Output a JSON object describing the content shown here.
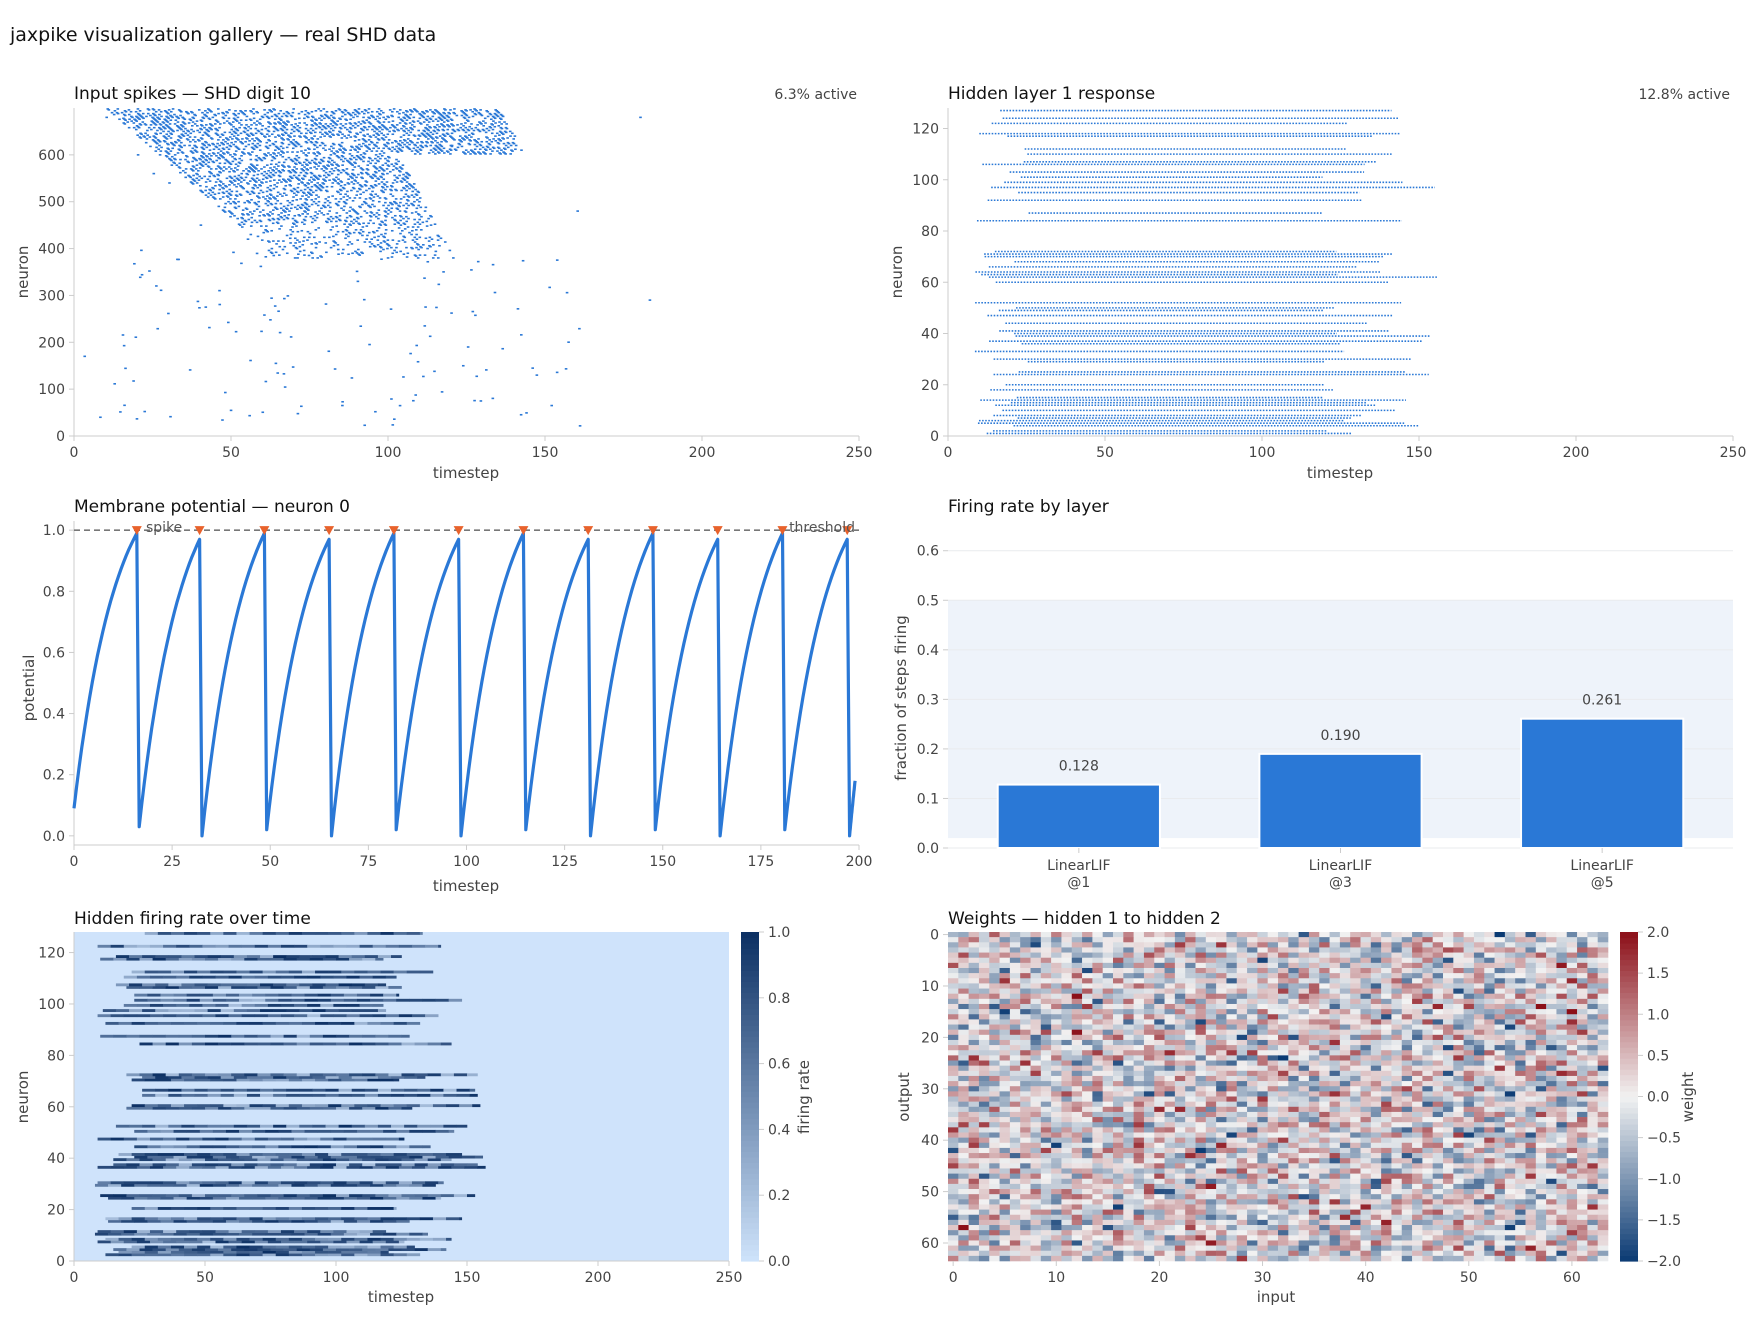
{
  "figure": {
    "title": "jaxpike visualization gallery — real SHD data"
  },
  "colors": {
    "primary": "#2a78d6",
    "spike_marker": "#e8622c",
    "threshold": "#777777",
    "band": "#eef3fa",
    "heat_low": "#cfe3fb",
    "heat_high": "#0b2f63",
    "div_neg": "#0a3a73",
    "div_mid": "#f2f2f2",
    "div_pos": "#8c0f18"
  },
  "chart_data": [
    {
      "id": "input_spikes",
      "type": "scatter",
      "title": "Input spikes — SHD digit 10",
      "note": "6.3% active",
      "xlabel": "timestep",
      "ylabel": "neuron",
      "xlim": [
        0,
        250
      ],
      "ylim": [
        0,
        700
      ],
      "xticks": [
        "0",
        "50",
        "100",
        "150",
        "200",
        "250"
      ],
      "yticks": [
        "0",
        "100",
        "200",
        "300",
        "400",
        "500",
        "600"
      ],
      "pattern": "dense raster of short horizontal spike dashes, concentrated in timesteps 10–145 for neurons 380–700 with sparse spikes below",
      "sample_spikes": [
        [
          10,
          680
        ],
        [
          20,
          600
        ],
        [
          25,
          560
        ],
        [
          30,
          540
        ],
        [
          40,
          450
        ],
        [
          55,
          420
        ],
        [
          70,
          380
        ],
        [
          90,
          330
        ],
        [
          120,
          620
        ],
        [
          140,
          640
        ],
        [
          160,
          480
        ],
        [
          180,
          680
        ],
        [
          183,
          290
        ],
        [
          3,
          170
        ],
        [
          8,
          40
        ]
      ]
    },
    {
      "id": "hidden1_response",
      "type": "scatter",
      "title": "Hidden layer 1 response",
      "note": "12.8% active",
      "xlabel": "timestep",
      "ylabel": "neuron",
      "xlim": [
        0,
        250
      ],
      "ylim": [
        0,
        128
      ],
      "xticks": [
        "0",
        "50",
        "100",
        "150",
        "200",
        "250"
      ],
      "yticks": [
        "0",
        "20",
        "40",
        "60",
        "80",
        "100",
        "120"
      ],
      "active_neurons": [
        1,
        2,
        4,
        5,
        6,
        7,
        8,
        10,
        12,
        13,
        14,
        15,
        18,
        20,
        24,
        25,
        29,
        30,
        33,
        36,
        37,
        39,
        40,
        41,
        44,
        47,
        49,
        50,
        52,
        60,
        62,
        63,
        64,
        66,
        68,
        70,
        71,
        72,
        84,
        87,
        92,
        95,
        97,
        99,
        101,
        103,
        106,
        107,
        110,
        112,
        117,
        118,
        122,
        124,
        127
      ],
      "pattern": "neurons spike on every timestep within an active window, roughly timesteps 10–155"
    },
    {
      "id": "membrane_potential",
      "type": "line",
      "title": "Membrane potential — neuron 0",
      "xlabel": "timestep",
      "ylabel": "potential",
      "xlim": [
        0,
        200
      ],
      "ylim": [
        -0.03,
        1.03
      ],
      "xticks": [
        "0",
        "25",
        "50",
        "75",
        "100",
        "125",
        "150",
        "175",
        "200"
      ],
      "yticks": [
        "0.0",
        "0.2",
        "0.4",
        "0.6",
        "0.8",
        "1.0"
      ],
      "threshold": 1.0,
      "threshold_label": "threshold",
      "spike_label": "spike",
      "start_value": 0.09,
      "end_value": 0.18,
      "end_time": 199,
      "spikes": [
        {
          "t": 16,
          "v": 0.99,
          "reset": 0.03
        },
        {
          "t": 32,
          "v": 0.97,
          "reset": 0.0
        },
        {
          "t": 48.5,
          "v": 0.99,
          "reset": 0.02
        },
        {
          "t": 65,
          "v": 0.97,
          "reset": 0.0
        },
        {
          "t": 81.5,
          "v": 0.99,
          "reset": 0.02
        },
        {
          "t": 98,
          "v": 0.97,
          "reset": 0.0
        },
        {
          "t": 114.5,
          "v": 0.99,
          "reset": 0.02
        },
        {
          "t": 131,
          "v": 0.97,
          "reset": 0.0
        },
        {
          "t": 147.5,
          "v": 0.99,
          "reset": 0.02
        },
        {
          "t": 164,
          "v": 0.97,
          "reset": 0.0
        },
        {
          "t": 180.5,
          "v": 0.99,
          "reset": 0.02
        },
        {
          "t": 197,
          "v": 0.97,
          "reset": 0.0
        }
      ]
    },
    {
      "id": "firing_rate_by_layer",
      "type": "bar",
      "title": "Firing rate by layer",
      "ylabel": "fraction of steps firing",
      "ylim": [
        0,
        0.66
      ],
      "yticks": [
        "0.0",
        "0.1",
        "0.2",
        "0.3",
        "0.4",
        "0.5",
        "0.6"
      ],
      "band": [
        0.02,
        0.5
      ],
      "categories": [
        [
          "LinearLIF",
          "@1"
        ],
        [
          "LinearLIF",
          "@3"
        ],
        [
          "LinearLIF",
          "@5"
        ]
      ],
      "values": [
        0.128,
        0.19,
        0.261
      ],
      "value_labels": [
        "0.128",
        "0.190",
        "0.261"
      ]
    },
    {
      "id": "hidden_rate_over_time",
      "type": "heatmap",
      "title": "Hidden firing rate over time",
      "xlabel": "timestep",
      "ylabel": "neuron",
      "xlim": [
        0,
        250
      ],
      "ylim": [
        0,
        128
      ],
      "xticks": [
        "0",
        "50",
        "100",
        "150",
        "200",
        "250"
      ],
      "yticks": [
        "0",
        "20",
        "40",
        "60",
        "80",
        "100",
        "120"
      ],
      "colorbar_label": "firing rate",
      "colorbar_range": [
        0,
        1
      ],
      "colorbar_ticks": [
        "0.0",
        "0.2",
        "0.4",
        "0.6",
        "0.8",
        "1.0"
      ],
      "active_rows": [
        2,
        3,
        4,
        5,
        7,
        8,
        10,
        11,
        15,
        16,
        20,
        24,
        25,
        29,
        30,
        36,
        37,
        39,
        40,
        41,
        44,
        47,
        50,
        52,
        59,
        60,
        64,
        66,
        70,
        71,
        72,
        84,
        87,
        92,
        95,
        97,
        99,
        101,
        103,
        106,
        107,
        110,
        112,
        117,
        118,
        122,
        127
      ]
    },
    {
      "id": "weights_h1_h2",
      "type": "heatmap",
      "title": "Weights — hidden 1 to hidden 2",
      "xlabel": "input",
      "ylabel": "output",
      "shape": [
        64,
        64
      ],
      "xticks": [
        "0",
        "10",
        "20",
        "30",
        "40",
        "50",
        "60"
      ],
      "yticks": [
        "0",
        "10",
        "20",
        "30",
        "40",
        "50",
        "60"
      ],
      "colorbar_label": "weight",
      "colorbar_range": [
        -2,
        2
      ],
      "colorbar_ticks": [
        "−2.0",
        "−1.5",
        "−1.0",
        "−0.5",
        "0.0",
        "0.5",
        "1.0",
        "1.5",
        "2.0"
      ]
    }
  ]
}
